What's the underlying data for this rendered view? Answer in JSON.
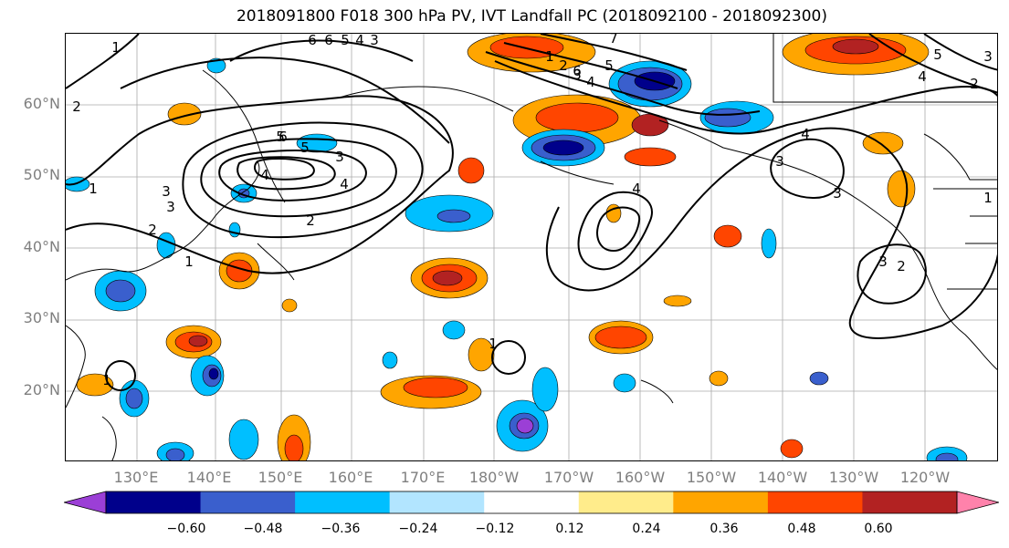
{
  "title": "2018091800 F018 300 hPa PV, IVT Landfall PC (2018092100 - 2018092300)",
  "lat_labels": [
    "60°N",
    "50°N",
    "40°N",
    "30°N",
    "20°N"
  ],
  "lon_labels": [
    "130°E",
    "140°E",
    "150°E",
    "160°E",
    "170°E",
    "180°W",
    "170°W",
    "160°W",
    "150°W",
    "140°W",
    "130°W",
    "120°W"
  ],
  "colorbar": {
    "colors": [
      "#9b3fd6",
      "#00008b",
      "#3a5fcd",
      "#00bfff",
      "#b2e5ff",
      "#ffffff",
      "#ffec8b",
      "#ffa500",
      "#ff4500",
      "#b22222",
      "#ff82ab"
    ],
    "ticks": [
      "−0.60",
      "−0.48",
      "−0.36",
      "−0.24",
      "−0.12",
      "0.12",
      "0.24",
      "0.36",
      "0.48",
      "0.60"
    ]
  },
  "contour_labels": [
    "1",
    "2",
    "3",
    "4",
    "5",
    "6",
    "6",
    "5",
    "4",
    "3",
    "2",
    "1",
    "2",
    "3",
    "4",
    "5",
    "6",
    "1",
    "2",
    "3",
    "4",
    "5",
    "6",
    "4",
    "3",
    "3",
    "4",
    "3",
    "2",
    "1",
    "1",
    "3",
    "1",
    "2",
    "3",
    "4",
    "5",
    "1",
    "7"
  ]
}
